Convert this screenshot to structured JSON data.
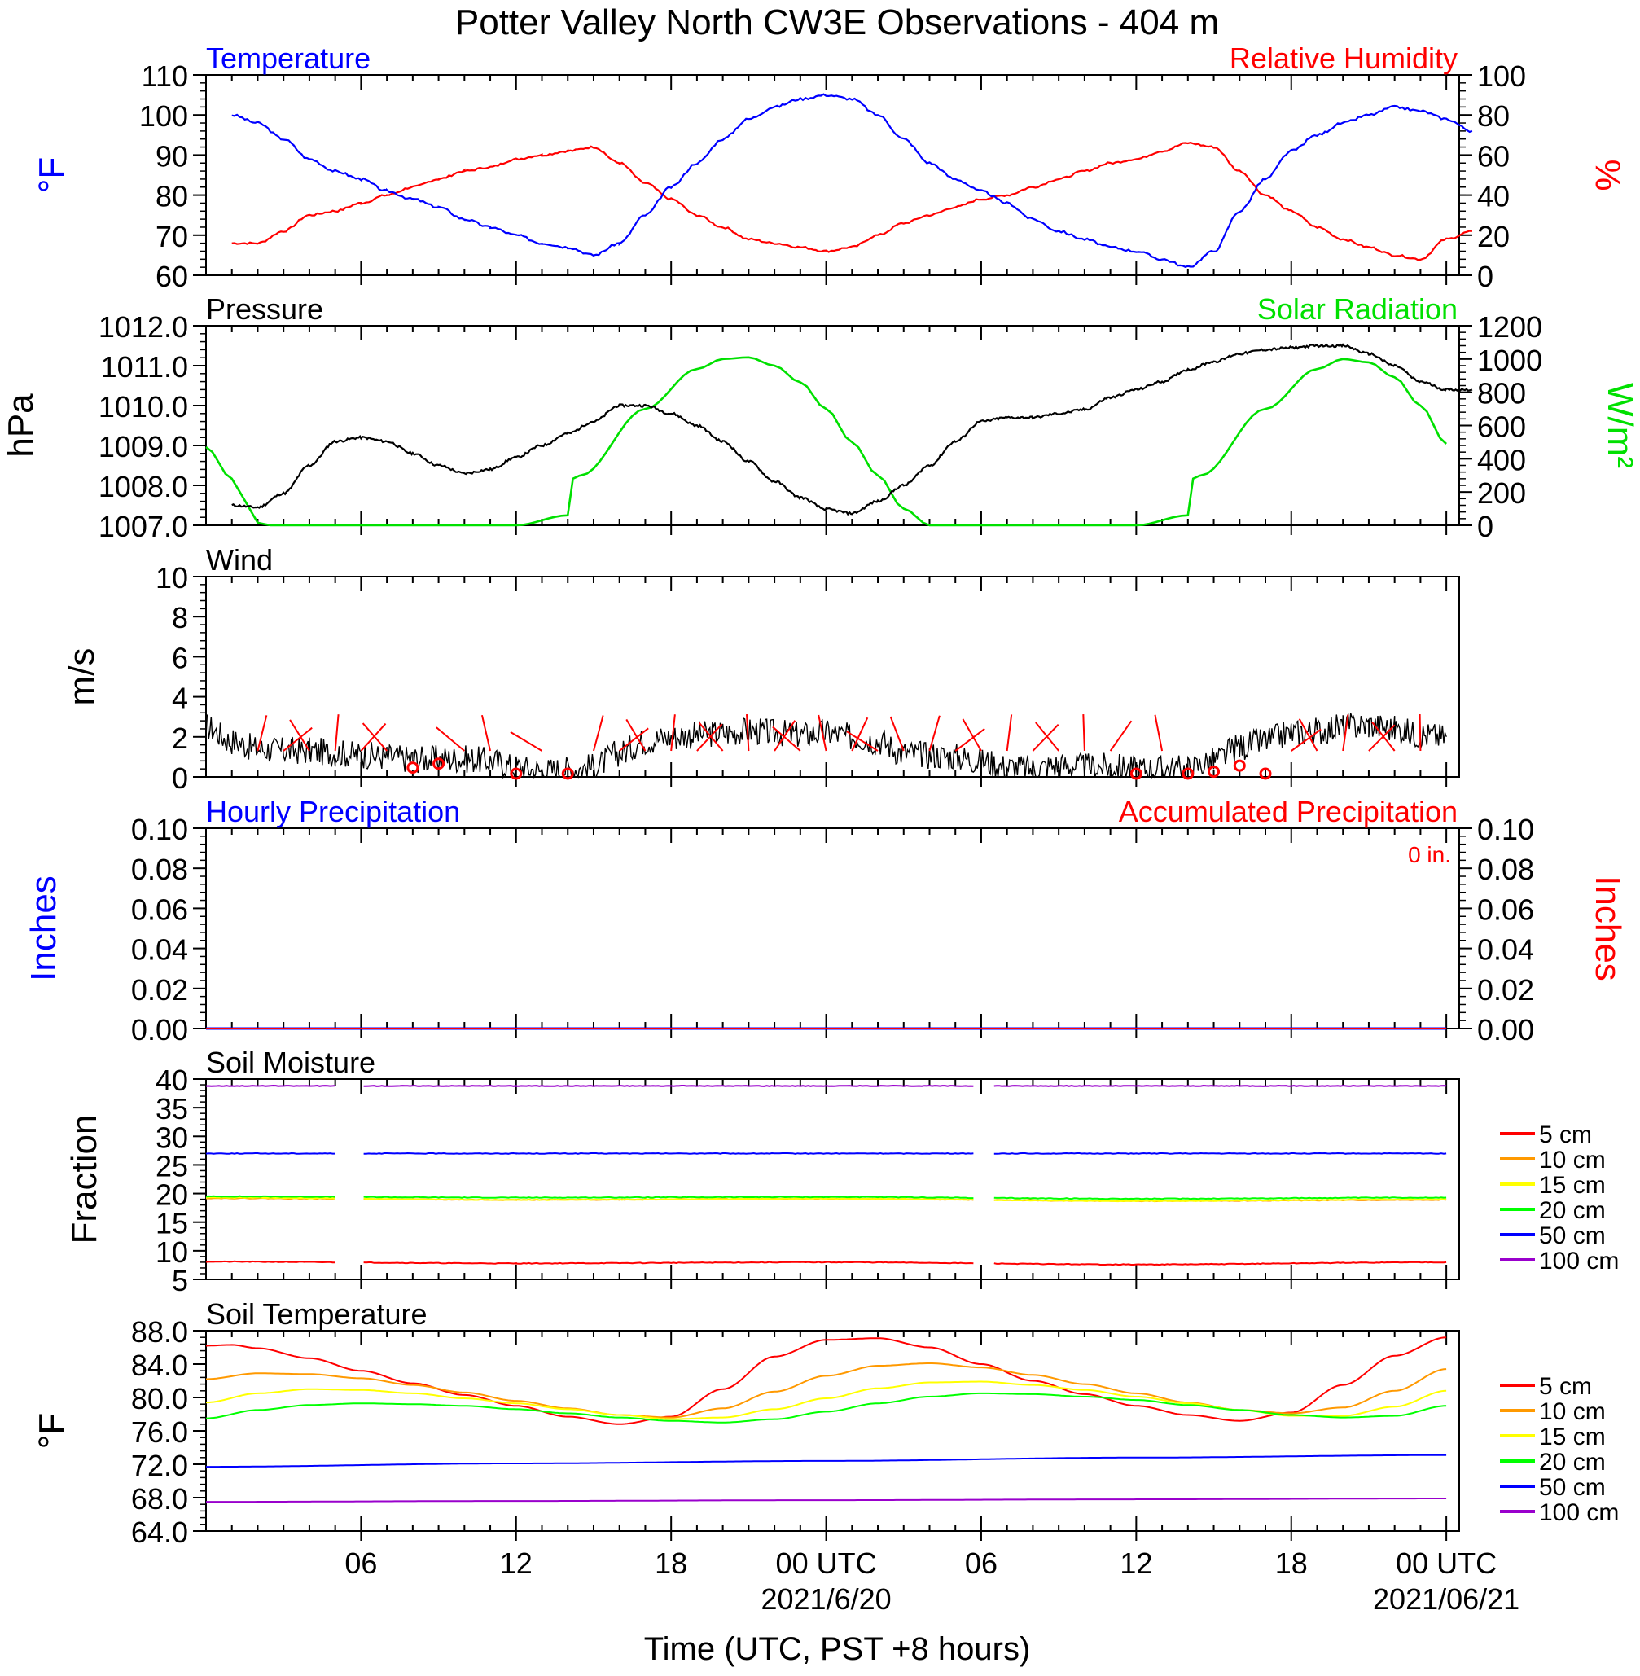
{
  "title": "Potter Valley North CW3E Observations - 404 m",
  "x_axis": {
    "ticks": [
      {
        "hour": 6,
        "label": "06"
      },
      {
        "hour": 12,
        "label": "12"
      },
      {
        "hour": 18,
        "label": "18"
      },
      {
        "hour": 24,
        "label": "00 UTC"
      },
      {
        "hour": 30,
        "label": "06"
      },
      {
        "hour": 36,
        "label": "12"
      },
      {
        "hour": 42,
        "label": "18"
      },
      {
        "hour": 48,
        "label": "00 UTC"
      }
    ],
    "date_labels": [
      {
        "hour": 24,
        "label": "2021/6/20"
      },
      {
        "hour": 48,
        "label": "2021/06/21"
      }
    ],
    "xlabel": "Time (UTC, PST +8 hours)"
  },
  "colors": {
    "temperature": "#0000ff",
    "humidity": "#ff0000",
    "pressure": "#000000",
    "solar": "#00e000",
    "wind": "#000000",
    "barb": "#ff0000",
    "precip_hourly": "#0000ff",
    "precip_accum": "#ff0000",
    "depths": {
      "5 cm": "#ff0000",
      "10 cm": "#ff9900",
      "15 cm": "#ffff00",
      "20 cm": "#00ff00",
      "50 cm": "#0000ff",
      "100 cm": "#9900cc"
    }
  },
  "chart_data": [
    {
      "type": "line",
      "panel": "temperature-humidity",
      "left_title": "Temperature",
      "right_title": "Relative Humidity",
      "ylabel_left": "°F",
      "ylabel_right": "%",
      "ylim_left": [
        60,
        110
      ],
      "ylim_right": [
        0,
        100
      ],
      "yticks_left": [
        "60",
        "70",
        "80",
        "90",
        "100",
        "110"
      ],
      "yticks_right": [
        "0",
        "20",
        "40",
        "60",
        "80",
        "100"
      ],
      "series": [
        {
          "name": "Temperature",
          "axis": "left",
          "x": [
            1,
            2,
            3,
            4,
            5,
            6,
            7,
            8,
            9,
            10,
            11,
            12,
            13,
            14,
            15,
            16,
            17,
            18,
            19,
            20,
            21,
            22,
            23,
            24,
            25,
            26,
            27,
            28,
            29,
            30,
            31,
            32,
            33,
            34,
            35,
            36,
            37,
            38,
            39,
            40,
            41,
            42,
            43,
            44,
            45,
            46,
            47,
            48,
            49
          ],
          "y": [
            100,
            98,
            94,
            89,
            86,
            84,
            81,
            79,
            77,
            74,
            72,
            70,
            68,
            67,
            65,
            68,
            75,
            82,
            88,
            94,
            99,
            102,
            104,
            105,
            104,
            100,
            94,
            88,
            84,
            81,
            78,
            74,
            71,
            69,
            67,
            66,
            64,
            62,
            66,
            76,
            84,
            91,
            95,
            98,
            100,
            102,
            101,
            99,
            96
          ]
        },
        {
          "name": "Relative Humidity",
          "axis": "right",
          "x": [
            1,
            2,
            3,
            4,
            5,
            6,
            7,
            8,
            9,
            10,
            11,
            12,
            13,
            14,
            15,
            16,
            17,
            18,
            19,
            20,
            21,
            22,
            23,
            24,
            25,
            26,
            27,
            28,
            29,
            30,
            31,
            32,
            33,
            34,
            35,
            36,
            37,
            38,
            39,
            40,
            41,
            42,
            43,
            44,
            45,
            46,
            47,
            48,
            49
          ],
          "y": [
            16,
            16,
            22,
            30,
            32,
            36,
            40,
            44,
            48,
            52,
            54,
            58,
            60,
            62,
            64,
            56,
            46,
            38,
            30,
            24,
            18,
            16,
            14,
            12,
            14,
            20,
            26,
            30,
            34,
            38,
            40,
            44,
            48,
            52,
            56,
            58,
            62,
            66,
            64,
            52,
            40,
            32,
            24,
            18,
            14,
            10,
            8,
            18,
            22
          ]
        }
      ]
    },
    {
      "type": "line",
      "panel": "pressure-solar",
      "left_title": "Pressure",
      "right_title": "Solar Radiation",
      "ylabel_left": "hPa",
      "ylabel_right": "W/m²",
      "ylim_left": [
        1007.0,
        1012.0
      ],
      "ylim_right": [
        0,
        1200
      ],
      "yticks_left": [
        "1007.0",
        "1008.0",
        "1009.0",
        "1010.0",
        "1011.0",
        "1012.0"
      ],
      "yticks_right": [
        "0",
        "200",
        "400",
        "600",
        "800",
        "1000",
        "1200"
      ],
      "series": [
        {
          "name": "Pressure",
          "axis": "left",
          "x": [
            1,
            2,
            3,
            4,
            5,
            6,
            7,
            8,
            9,
            10,
            11,
            12,
            13,
            14,
            15,
            16,
            17,
            18,
            19,
            20,
            21,
            22,
            23,
            24,
            25,
            26,
            27,
            28,
            29,
            30,
            31,
            32,
            33,
            34,
            35,
            36,
            37,
            38,
            39,
            40,
            41,
            42,
            43,
            44,
            45,
            46,
            47,
            48,
            49
          ],
          "y": [
            1007.5,
            1007.45,
            1007.8,
            1008.5,
            1009.1,
            1009.2,
            1009.1,
            1008.8,
            1008.5,
            1008.3,
            1008.4,
            1008.7,
            1009.0,
            1009.3,
            1009.6,
            1010.0,
            1010.0,
            1009.8,
            1009.5,
            1009.1,
            1008.6,
            1008.1,
            1007.7,
            1007.4,
            1007.3,
            1007.6,
            1008.0,
            1008.5,
            1009.1,
            1009.6,
            1009.7,
            1009.7,
            1009.8,
            1009.9,
            1010.2,
            1010.4,
            1010.6,
            1010.9,
            1011.1,
            1011.3,
            1011.4,
            1011.45,
            1011.5,
            1011.5,
            1011.3,
            1011.0,
            1010.6,
            1010.4,
            1010.4
          ]
        },
        {
          "name": "Solar Radiation",
          "axis": "right",
          "x": [
            0,
            1,
            1.5,
            2,
            2.5,
            3,
            6,
            9,
            12,
            14,
            14.2,
            14.5,
            17,
            19,
            20,
            21,
            22,
            23,
            24,
            25,
            26,
            27,
            28,
            30,
            33,
            36,
            38,
            38.2,
            38.5,
            41,
            43,
            44,
            45,
            46,
            47,
            48
          ],
          "y": [
            470,
            280,
            150,
            15,
            0,
            0,
            0,
            0,
            0,
            60,
            280,
            300,
            700,
            940,
            1000,
            1010,
            960,
            860,
            700,
            500,
            300,
            100,
            0,
            0,
            0,
            0,
            60,
            280,
            300,
            700,
            940,
            1000,
            980,
            890,
            720,
            490
          ]
        }
      ]
    },
    {
      "type": "line",
      "panel": "wind",
      "left_title": "Wind",
      "ylabel_left": "m/s",
      "ylim_left": [
        0,
        10
      ],
      "yticks_left": [
        "0",
        "2",
        "4",
        "6",
        "8",
        "10"
      ],
      "series": [
        {
          "name": "Wind",
          "x": [
            0,
            1,
            2,
            3,
            4,
            5,
            6,
            7,
            8,
            9,
            10,
            11,
            12,
            13,
            14,
            15,
            16,
            17,
            18,
            19,
            20,
            21,
            22,
            23,
            24,
            25,
            26,
            27,
            28,
            29,
            30,
            31,
            32,
            33,
            34,
            35,
            36,
            37,
            38,
            39,
            40,
            41,
            42,
            43,
            44,
            45,
            46,
            47,
            48
          ],
          "y": [
            2.5,
            1.8,
            1.4,
            1.3,
            1.3,
            1.2,
            1.1,
            1.0,
            0.9,
            0.9,
            0.9,
            0.8,
            0.5,
            0.3,
            0.4,
            0.5,
            1.2,
            1.8,
            2.0,
            2.1,
            2.2,
            2.3,
            2.2,
            2.1,
            2.2,
            2.0,
            1.8,
            1.2,
            1.1,
            1.0,
            0.8,
            0.5,
            0.4,
            0.6,
            0.5,
            0.5,
            0.4,
            0.4,
            0.4,
            0.8,
            1.5,
            1.8,
            2.2,
            2.3,
            2.5,
            2.6,
            2.4,
            2.1,
            2.0
          ]
        }
      ],
      "barbs": [
        {
          "hour": 8,
          "speed": 0.3,
          "calm": true
        },
        {
          "hour": 9,
          "speed": 0.5,
          "calm": true
        },
        {
          "hour": 12,
          "speed": 0.0,
          "calm": true
        },
        {
          "hour": 14,
          "speed": 0.0,
          "calm": true
        },
        {
          "hour": 36,
          "speed": 0.0,
          "calm": true
        },
        {
          "hour": 38,
          "speed": 0.0,
          "calm": true
        },
        {
          "hour": 39,
          "speed": 0.1,
          "calm": true
        },
        {
          "hour": 40,
          "speed": 0.4,
          "calm": true
        },
        {
          "hour": 41,
          "speed": 0.0,
          "calm": true
        }
      ]
    },
    {
      "type": "line",
      "panel": "precipitation",
      "left_title": "Hourly Precipitation",
      "right_title": "Accumulated Precipitation",
      "annotation": "0 in.",
      "ylabel_left": "Inches",
      "ylabel_right": "Inches",
      "ylim_left": [
        0,
        0.1
      ],
      "ylim_right": [
        0,
        0.1
      ],
      "yticks_left": [
        "0.00",
        "0.02",
        "0.04",
        "0.06",
        "0.08",
        "0.10"
      ],
      "yticks_right": [
        "0.00",
        "0.02",
        "0.04",
        "0.06",
        "0.08",
        "0.10"
      ],
      "series": [
        {
          "name": "Hourly Precipitation",
          "x": [
            0,
            48
          ],
          "y": [
            0,
            0
          ]
        },
        {
          "name": "Accumulated Precipitation",
          "x": [
            0,
            48
          ],
          "y": [
            0,
            0
          ]
        }
      ]
    },
    {
      "type": "line",
      "panel": "soil-moisture",
      "left_title": "Soil Moisture",
      "ylabel_left": "Fraction",
      "ylim_left": [
        5,
        40
      ],
      "yticks_left": [
        "5",
        "10",
        "15",
        "20",
        "25",
        "30",
        "35",
        "40"
      ],
      "gaps": [
        [
          5,
          6
        ],
        [
          29.8,
          30.5
        ]
      ],
      "series": [
        {
          "name": "5 cm",
          "x": [
            0,
            12,
            24,
            36,
            48
          ],
          "y": [
            8.1,
            7.8,
            8.0,
            7.6,
            8.0
          ]
        },
        {
          "name": "10 cm",
          "x": [
            0,
            12,
            24,
            36,
            48
          ],
          "y": [
            19.2,
            18.9,
            19.1,
            18.7,
            18.9
          ]
        },
        {
          "name": "15 cm",
          "x": [
            0,
            12,
            24,
            36,
            48
          ],
          "y": [
            19.3,
            18.9,
            19.1,
            18.7,
            19.0
          ]
        },
        {
          "name": "20 cm",
          "x": [
            0,
            12,
            24,
            36,
            48
          ],
          "y": [
            19.5,
            19.3,
            19.4,
            19.1,
            19.3
          ]
        },
        {
          "name": "50 cm",
          "x": [
            0,
            12,
            24,
            36,
            48
          ],
          "y": [
            27.0,
            27.0,
            27.0,
            27.0,
            27.0
          ]
        },
        {
          "name": "100 cm",
          "x": [
            0,
            12,
            24,
            36,
            48
          ],
          "y": [
            38.8,
            38.8,
            38.8,
            38.8,
            38.8
          ]
        }
      ]
    },
    {
      "type": "line",
      "panel": "soil-temperature",
      "left_title": "Soil Temperature",
      "ylabel_left": "°F",
      "ylim_left": [
        64.0,
        88.0
      ],
      "yticks_left": [
        "64.0",
        "68.0",
        "72.0",
        "76.0",
        "80.0",
        "84.0",
        "88.0"
      ],
      "series": [
        {
          "name": "5 cm",
          "x": [
            0,
            1,
            2,
            4,
            6,
            8,
            10,
            12,
            14,
            16,
            18,
            20,
            22,
            24,
            26,
            28,
            30,
            32,
            34,
            36,
            38,
            40,
            42,
            44,
            46,
            48
          ],
          "y": [
            86.2,
            86.3,
            85.9,
            84.7,
            83.2,
            81.7,
            80.3,
            79.0,
            77.7,
            76.8,
            77.7,
            81.0,
            84.9,
            86.9,
            87.1,
            86.0,
            84.0,
            82.0,
            80.4,
            79.0,
            77.9,
            77.2,
            78.2,
            81.5,
            85.0,
            87.2
          ]
        },
        {
          "name": "10 cm",
          "x": [
            0,
            2,
            4,
            6,
            8,
            10,
            12,
            14,
            16,
            18,
            20,
            22,
            24,
            26,
            28,
            30,
            32,
            34,
            36,
            38,
            40,
            42,
            44,
            46,
            48
          ],
          "y": [
            82.2,
            82.9,
            82.8,
            82.3,
            81.5,
            80.6,
            79.6,
            78.7,
            77.9,
            77.6,
            78.7,
            80.7,
            82.6,
            83.8,
            84.1,
            83.6,
            82.7,
            81.6,
            80.5,
            79.4,
            78.5,
            78.1,
            78.8,
            80.8,
            83.4
          ]
        },
        {
          "name": "15 cm",
          "x": [
            0,
            2,
            4,
            6,
            8,
            10,
            12,
            14,
            16,
            18,
            20,
            22,
            24,
            26,
            28,
            30,
            32,
            34,
            36,
            38,
            40,
            42,
            44,
            46,
            48
          ],
          "y": [
            79.4,
            80.5,
            81.0,
            80.9,
            80.5,
            79.9,
            79.3,
            78.6,
            77.9,
            77.4,
            77.6,
            78.6,
            79.9,
            81.1,
            81.8,
            81.9,
            81.5,
            80.9,
            80.1,
            79.3,
            78.5,
            77.8,
            77.8,
            78.9,
            80.8
          ]
        },
        {
          "name": "20 cm",
          "x": [
            0,
            2,
            4,
            6,
            8,
            10,
            12,
            14,
            16,
            18,
            20,
            22,
            24,
            26,
            28,
            30,
            32,
            34,
            36,
            38,
            40,
            42,
            44,
            46,
            48
          ],
          "y": [
            77.5,
            78.5,
            79.1,
            79.3,
            79.2,
            79.0,
            78.6,
            78.1,
            77.6,
            77.2,
            77.0,
            77.4,
            78.3,
            79.3,
            80.1,
            80.5,
            80.4,
            80.1,
            79.7,
            79.1,
            78.5,
            77.9,
            77.6,
            77.8,
            79.0
          ]
        },
        {
          "name": "50 cm",
          "x": [
            0,
            12,
            24,
            36,
            48
          ],
          "y": [
            71.7,
            72.1,
            72.4,
            72.8,
            73.1
          ]
        },
        {
          "name": "100 cm",
          "x": [
            0,
            12,
            24,
            36,
            48
          ],
          "y": [
            67.5,
            67.6,
            67.7,
            67.8,
            67.9
          ]
        }
      ]
    }
  ]
}
